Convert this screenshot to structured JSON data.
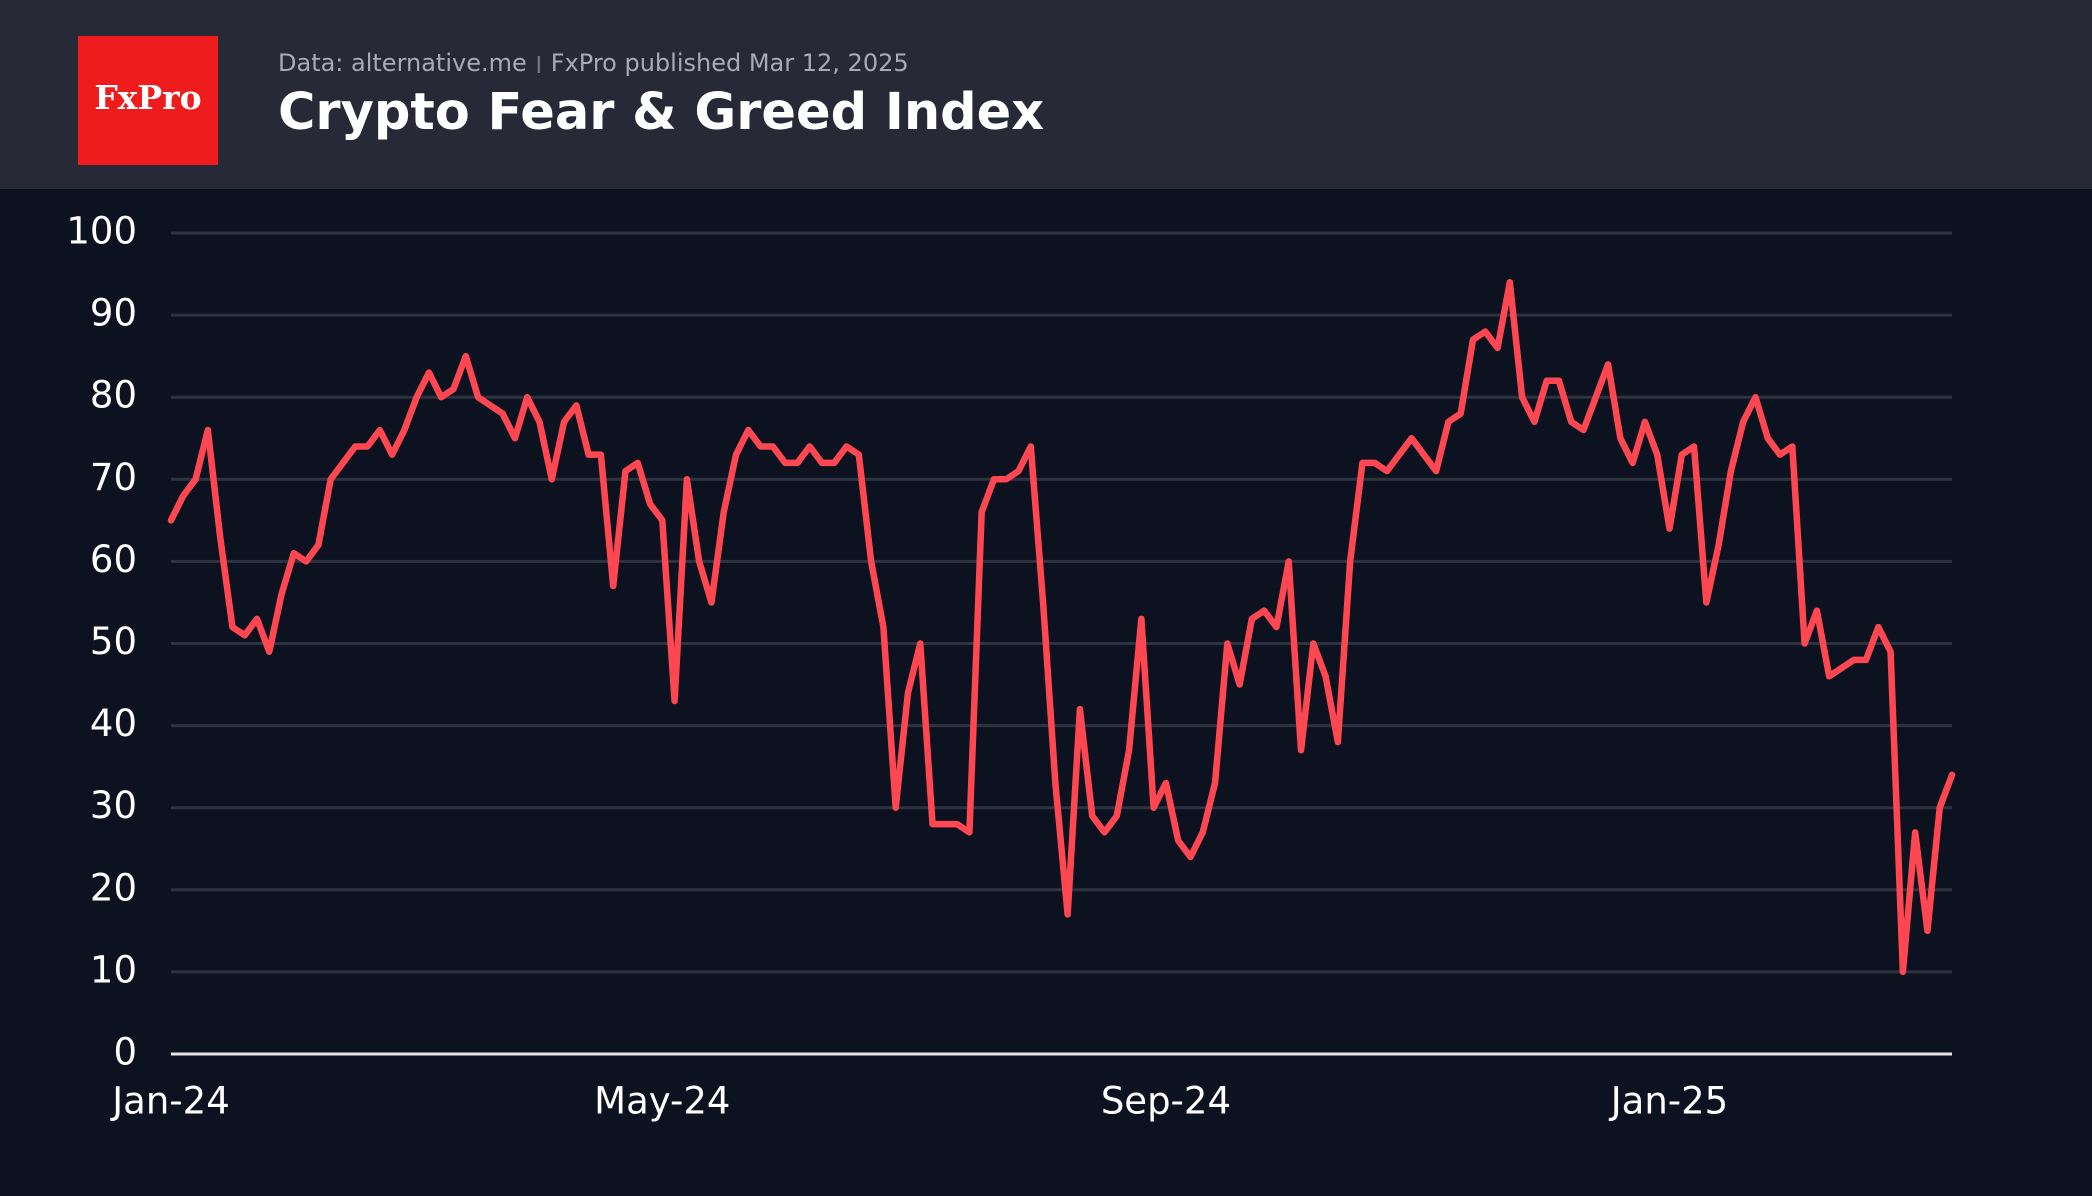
{
  "logo": "FxPro",
  "chart_data": {
    "type": "line",
    "title": "Crypto Fear & Greed Index",
    "source": "Data: alternative.me",
    "published": "FxPro published Mar 12, 2025",
    "categories": [
      "Jan-24",
      null,
      null,
      null,
      null,
      null,
      null,
      null,
      null,
      null,
      null,
      null,
      null,
      null,
      null,
      null,
      null,
      null,
      null,
      null,
      null,
      null,
      null,
      null,
      null,
      null,
      null,
      null,
      null,
      null,
      null,
      null,
      null,
      null,
      null,
      null,
      null,
      null,
      null,
      null,
      "May-24",
      null,
      null,
      null,
      null,
      null,
      null,
      null,
      null,
      null,
      null,
      null,
      null,
      null,
      null,
      null,
      null,
      null,
      null,
      null,
      null,
      null,
      null,
      null,
      null,
      null,
      null,
      null,
      null,
      null,
      null,
      null,
      null,
      null,
      null,
      null,
      null,
      null,
      null,
      null,
      null,
      "Sep-24",
      null,
      null,
      null,
      null,
      null,
      null,
      null,
      null,
      null,
      null,
      null,
      null,
      null,
      null,
      null,
      null,
      null,
      null,
      null,
      null,
      null,
      null,
      null,
      null,
      null,
      null,
      null,
      null,
      null,
      null,
      null,
      null,
      null,
      null,
      null,
      null,
      null,
      null,
      null,
      null,
      "Jan-25",
      null,
      null,
      null,
      null,
      null,
      null,
      null,
      null,
      null,
      null,
      null,
      null,
      null,
      null,
      null,
      null,
      null,
      null,
      null,
      null,
      null,
      null,
      null
    ],
    "series": [
      {
        "name": "Crypto Fear & Greed Index",
        "color": "#ff4752",
        "values": [
          65,
          68,
          70,
          76,
          63,
          52,
          51,
          53,
          49,
          56,
          61,
          60,
          62,
          70,
          72,
          74,
          74,
          76,
          73,
          76,
          80,
          83,
          80,
          81,
          85,
          80,
          79,
          78,
          75,
          80,
          77,
          70,
          77,
          79,
          73,
          73,
          57,
          71,
          72,
          67,
          65,
          43,
          70,
          60,
          55,
          66,
          73,
          76,
          74,
          74,
          72,
          72,
          74,
          72,
          72,
          74,
          73,
          60,
          52,
          30,
          44,
          50,
          28,
          28,
          28,
          27,
          66,
          70,
          70,
          71,
          74,
          55,
          33,
          17,
          42,
          29,
          27,
          29,
          37,
          53,
          30,
          33,
          26,
          24,
          27,
          33,
          50,
          45,
          53,
          54,
          52,
          60,
          37,
          50,
          46,
          38,
          60,
          72,
          72,
          71,
          73,
          75,
          73,
          71,
          77,
          78,
          87,
          88,
          86,
          94,
          80,
          77,
          82,
          82,
          77,
          76,
          80,
          84,
          75,
          72,
          77,
          73,
          64,
          73,
          74,
          55,
          62,
          71,
          77,
          80,
          75,
          73,
          74,
          50,
          54,
          46,
          47,
          48,
          48,
          52,
          49,
          10,
          27,
          15,
          30,
          34
        ]
      }
    ],
    "ylim": [
      0,
      100
    ],
    "yticks": [
      0,
      10,
      20,
      30,
      40,
      50,
      60,
      70,
      80,
      90,
      100
    ],
    "grid": true
  }
}
